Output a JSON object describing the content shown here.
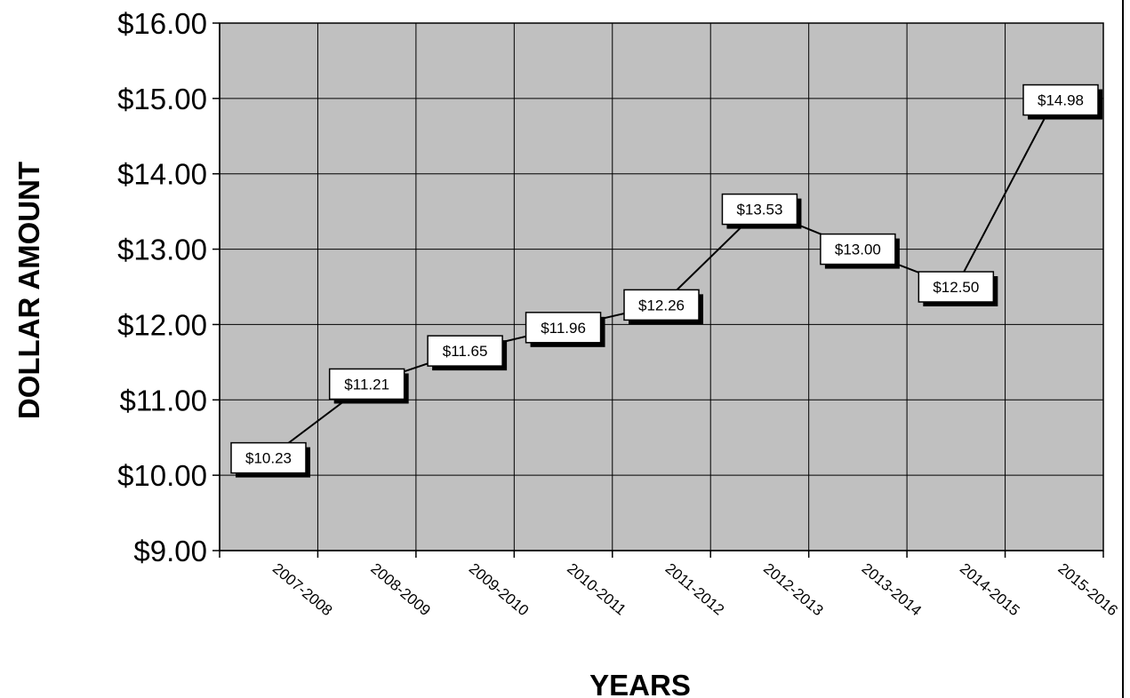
{
  "chart_data": {
    "type": "line",
    "categories": [
      "2007-2008",
      "2008-2009",
      "2009-2010",
      "2010-2011",
      "2011-2012",
      "2012-2013",
      "2013-2014",
      "2014-2015",
      "2015-2016"
    ],
    "values": [
      10.23,
      11.21,
      11.65,
      11.96,
      12.26,
      13.53,
      13.0,
      12.5,
      14.98
    ],
    "data_labels": [
      "$10.23",
      "$11.21",
      "$11.65",
      "$11.96",
      "$12.26",
      "$13.53",
      "$13.00",
      "$12.50",
      "$14.98"
    ],
    "ylim": [
      9,
      16
    ],
    "yticks": [
      9,
      10,
      11,
      12,
      13,
      14,
      15,
      16
    ],
    "ytick_labels": [
      "$9.00",
      "$10.00",
      "$11.00",
      "$12.00",
      "$13.00",
      "$14.00",
      "$15.00",
      "$16.00"
    ],
    "xlabel": "YEARS",
    "ylabel": "DOLLAR AMOUNT",
    "grid": true,
    "colors": {
      "plot_background": "#c0c0c0",
      "grid": "#000000",
      "line": "#000000",
      "label_box": "#ffffff"
    }
  }
}
